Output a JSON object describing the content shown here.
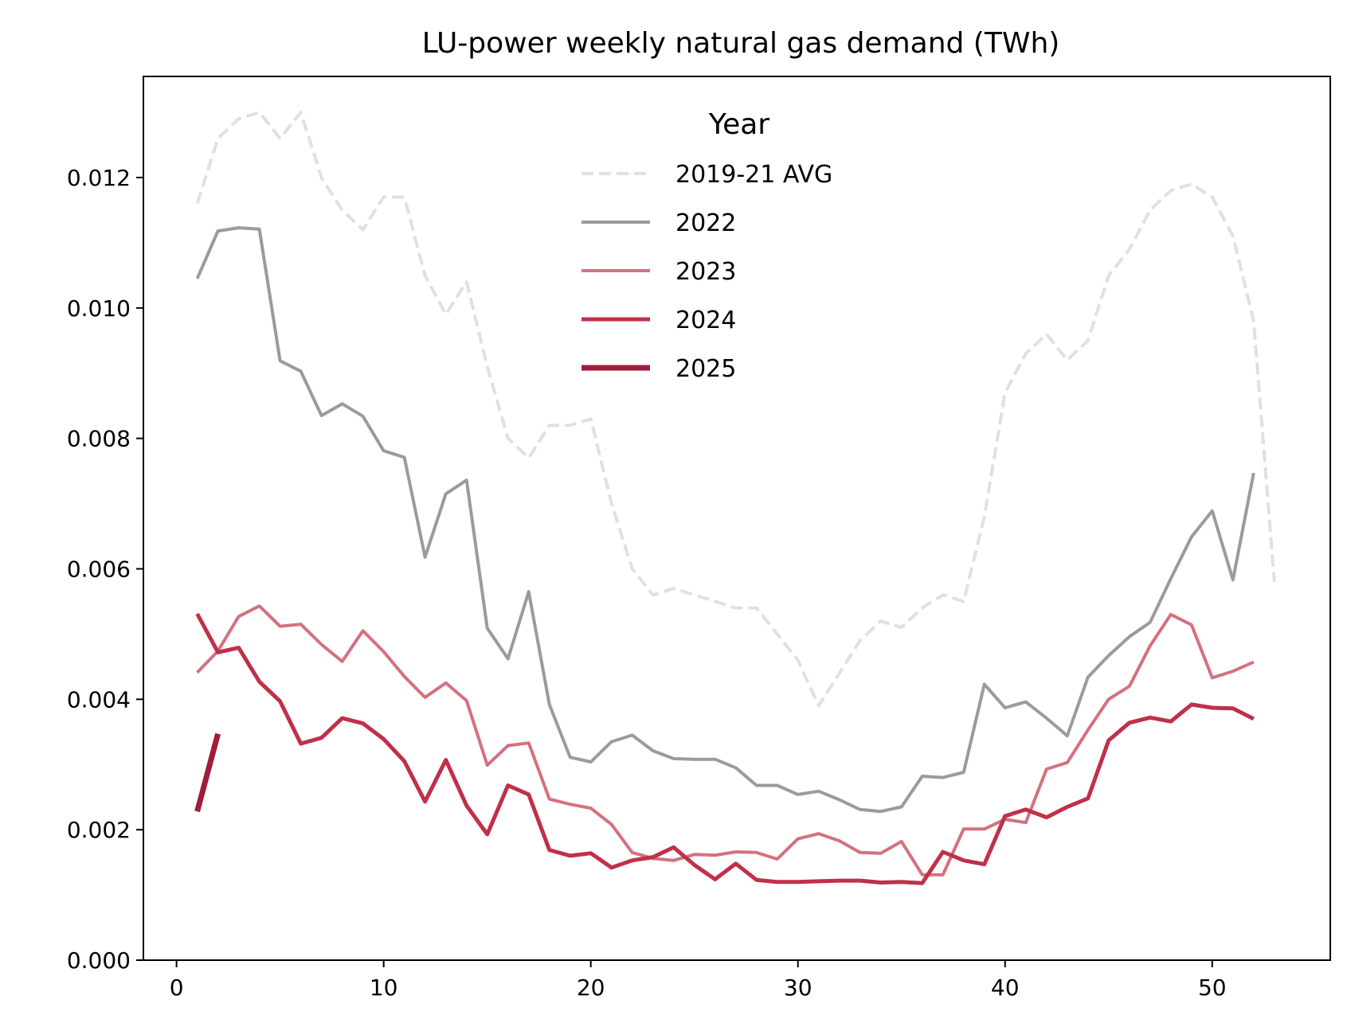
{
  "chart_data": {
    "type": "line",
    "title": "LU-power weekly natural gas demand (TWh)",
    "xlabel": "",
    "ylabel": "",
    "xlim": [
      -1.6,
      55.7
    ],
    "ylim": [
      0,
      0.01355
    ],
    "xticks": [
      0,
      10,
      20,
      30,
      40,
      50
    ],
    "xtick_labels": [
      "0",
      "10",
      "20",
      "30",
      "40",
      "50"
    ],
    "yticks": [
      0,
      0.002,
      0.004,
      0.006,
      0.008,
      0.01,
      0.012
    ],
    "ytick_labels": [
      "0.000",
      "0.002",
      "0.004",
      "0.006",
      "0.008",
      "0.010",
      "0.012"
    ],
    "grid": false,
    "legend": {
      "title": "Year",
      "placement": "upper center"
    },
    "series": [
      {
        "name": "2019-21 AVG",
        "color": "#e0e0e0",
        "style": "dashed",
        "x": [
          1,
          2,
          3,
          4,
          5,
          6,
          7,
          8,
          9,
          10,
          11,
          12,
          13,
          14,
          15,
          16,
          17,
          18,
          19,
          20,
          21,
          22,
          23,
          24,
          25,
          26,
          27,
          28,
          29,
          30,
          31,
          32,
          33,
          34,
          35,
          36,
          37,
          38,
          39,
          40,
          41,
          42,
          43,
          44,
          45,
          46,
          47,
          48,
          49,
          50,
          51,
          52,
          53
        ],
        "values": [
          0.0116,
          0.0126,
          0.0129,
          0.013,
          0.0126,
          0.013,
          0.012,
          0.0115,
          0.0112,
          0.0117,
          0.0117,
          0.0105,
          0.0099,
          0.0104,
          0.0091,
          0.008,
          0.0077,
          0.0082,
          0.0082,
          0.0083,
          0.007,
          0.006,
          0.0056,
          0.0057,
          0.0056,
          0.0055,
          0.0054,
          0.0054,
          0.005,
          0.0046,
          0.0039,
          0.0044,
          0.0049,
          0.0052,
          0.0051,
          0.0054,
          0.0056,
          0.0055,
          0.0068,
          0.0087,
          0.0093,
          0.0096,
          0.0092,
          0.0095,
          0.0105,
          0.0109,
          0.0115,
          0.0118,
          0.0119,
          0.0117,
          0.0111,
          0.0098,
          0.0058
        ]
      },
      {
        "name": "2022",
        "color": "#9b9b9b",
        "style": "solid",
        "x": [
          1,
          2,
          3,
          4,
          5,
          6,
          7,
          8,
          9,
          10,
          11,
          12,
          13,
          14,
          15,
          16,
          17,
          18,
          19,
          20,
          21,
          22,
          23,
          24,
          25,
          26,
          27,
          28,
          29,
          30,
          31,
          32,
          33,
          34,
          35,
          36,
          37,
          38,
          39,
          40,
          41,
          42,
          43,
          44,
          45,
          46,
          47,
          48,
          49,
          50,
          51,
          52
        ],
        "values": [
          0.01045,
          0.01118,
          0.01123,
          0.01121,
          0.00919,
          0.00903,
          0.00835,
          0.00853,
          0.00834,
          0.00781,
          0.00771,
          0.00618,
          0.00715,
          0.00736,
          0.00509,
          0.00462,
          0.00565,
          0.00392,
          0.00311,
          0.00304,
          0.00335,
          0.00345,
          0.00321,
          0.00309,
          0.00308,
          0.00308,
          0.00295,
          0.00268,
          0.00268,
          0.00254,
          0.00259,
          0.00246,
          0.00231,
          0.00228,
          0.00235,
          0.00282,
          0.0028,
          0.00288,
          0.00423,
          0.00387,
          0.00396,
          0.00371,
          0.00344,
          0.00434,
          0.00467,
          0.00496,
          0.00518,
          0.00585,
          0.00649,
          0.00689,
          0.00583,
          0.00747
        ]
      },
      {
        "name": "2023",
        "color": "#d4717e",
        "style": "solid",
        "x": [
          1,
          2,
          3,
          4,
          5,
          6,
          7,
          8,
          9,
          10,
          11,
          12,
          13,
          14,
          15,
          16,
          17,
          18,
          19,
          20,
          21,
          22,
          23,
          24,
          25,
          26,
          27,
          28,
          29,
          30,
          31,
          32,
          33,
          34,
          35,
          36,
          37,
          38,
          39,
          40,
          41,
          42,
          43,
          44,
          45,
          46,
          47,
          48,
          49,
          50,
          51,
          52
        ],
        "values": [
          0.00441,
          0.00474,
          0.00527,
          0.00543,
          0.00512,
          0.00515,
          0.00484,
          0.00458,
          0.00505,
          0.00473,
          0.00435,
          0.00403,
          0.00425,
          0.00398,
          0.00299,
          0.00329,
          0.00333,
          0.00247,
          0.00239,
          0.00233,
          0.00208,
          0.00165,
          0.00156,
          0.00153,
          0.00162,
          0.00161,
          0.00166,
          0.00165,
          0.00155,
          0.00186,
          0.00194,
          0.00183,
          0.00165,
          0.00164,
          0.00182,
          0.00131,
          0.00131,
          0.00201,
          0.00201,
          0.00216,
          0.00211,
          0.00293,
          0.00303,
          0.00353,
          0.004,
          0.0042,
          0.00482,
          0.0053,
          0.00514,
          0.00433,
          0.00443,
          0.00457
        ]
      },
      {
        "name": "2024",
        "color": "#c03048",
        "style": "solid",
        "x": [
          1,
          2,
          3,
          4,
          5,
          6,
          7,
          8,
          9,
          10,
          11,
          12,
          13,
          14,
          15,
          16,
          17,
          18,
          19,
          20,
          21,
          22,
          23,
          24,
          25,
          26,
          27,
          28,
          29,
          30,
          31,
          32,
          33,
          34,
          35,
          36,
          37,
          38,
          39,
          40,
          41,
          42,
          43,
          44,
          45,
          46,
          47,
          48,
          49,
          50,
          51,
          52
        ],
        "values": [
          0.00531,
          0.00472,
          0.00479,
          0.00427,
          0.00397,
          0.00332,
          0.00341,
          0.00371,
          0.00363,
          0.00339,
          0.00305,
          0.00243,
          0.00307,
          0.00237,
          0.00193,
          0.00268,
          0.00254,
          0.00169,
          0.0016,
          0.00164,
          0.00142,
          0.00153,
          0.00158,
          0.00173,
          0.00146,
          0.00124,
          0.00148,
          0.00123,
          0.0012,
          0.0012,
          0.00121,
          0.00122,
          0.00122,
          0.00119,
          0.0012,
          0.00118,
          0.00166,
          0.00153,
          0.00147,
          0.00221,
          0.00231,
          0.00219,
          0.00235,
          0.00248,
          0.00337,
          0.00364,
          0.00372,
          0.00366,
          0.00392,
          0.00387,
          0.00386,
          0.0037
        ]
      },
      {
        "name": "2025",
        "color": "#a01c3a",
        "style": "solid",
        "x": [
          1,
          2
        ],
        "values": [
          0.00228,
          0.00347
        ]
      }
    ]
  }
}
